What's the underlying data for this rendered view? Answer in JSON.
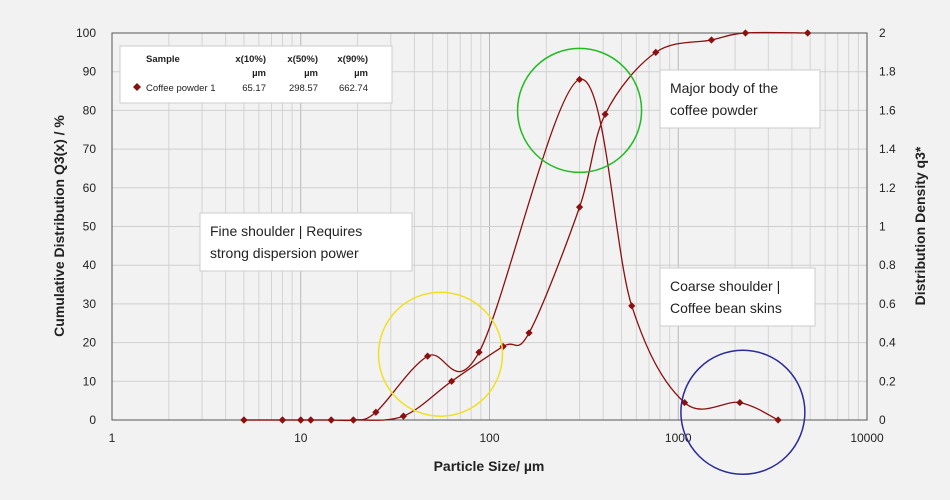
{
  "chart_data": {
    "type": "line",
    "xlabel": "Particle Size/ µm",
    "ylabel_left": "Cumulative Distribution Q3(x) / %",
    "ylabel_right": "Distribution Density q3*",
    "x_scale": "log",
    "xlim": [
      1,
      10000
    ],
    "x_ticks": [
      1,
      10,
      100,
      1000,
      10000
    ],
    "x_tick_labels": [
      "1",
      "10",
      "100",
      "1000",
      "10000"
    ],
    "ylim_left": [
      0,
      100
    ],
    "y_left_ticks": [
      0,
      10,
      20,
      30,
      40,
      50,
      60,
      70,
      80,
      90,
      100
    ],
    "ylim_right": [
      0,
      2
    ],
    "y_right_ticks": [
      "0",
      "0.2",
      "0.4",
      "0.6",
      "0.8",
      "1",
      "1.2",
      "1.4",
      "1.6",
      "1.8",
      "2"
    ],
    "grid": true,
    "series": [
      {
        "name": "Coffee powder 1",
        "axis": "left",
        "color": "#8b1010",
        "x": [
          5,
          8,
          10,
          11.3,
          14.5,
          19,
          35,
          63,
          118,
          162,
          300,
          410,
          760,
          1500,
          2270,
          4850
        ],
        "y": [
          0,
          0,
          0,
          0,
          0,
          0,
          1,
          10,
          19,
          22.5,
          55,
          79,
          95,
          98.2,
          100,
          100
        ]
      },
      {
        "axis": "right",
        "color": "#8b1010",
        "x": [
          5,
          8,
          10,
          11.3,
          14.5,
          19,
          25,
          47,
          88,
          300,
          567,
          1080,
          2120,
          3380
        ],
        "y": [
          0,
          0,
          0,
          0,
          0,
          0,
          0.04,
          0.33,
          0.35,
          1.76,
          0.59,
          0.09,
          0.09,
          0
        ]
      }
    ],
    "legend": {
      "position": "top-left",
      "headers": [
        "Sample",
        "x(10%)",
        "x(50%)",
        "x(90%)"
      ],
      "units": [
        "",
        "µm",
        "µm",
        "µm"
      ],
      "rows": [
        {
          "sample": "Coffee powder 1",
          "x10": "65.17",
          "x50": "298.57",
          "x90": "662.74"
        }
      ]
    },
    "annotations": [
      {
        "text_lines": [
          "Major body of the",
          "coffee powder"
        ],
        "color": "#22bb22",
        "circle_center_x": 300,
        "circle_center_y_left": 80
      },
      {
        "text_lines": [
          "Fine shoulder | Requires",
          "strong dispersion power"
        ],
        "color": "#f0e020",
        "circle_center_x": 55,
        "circle_center_y_left": 17
      },
      {
        "text_lines": [
          "Coarse shoulder |",
          "Coffee bean skins"
        ],
        "color": "#2a2a9a",
        "circle_center_x": 2200,
        "circle_center_y_left": 2
      }
    ]
  }
}
